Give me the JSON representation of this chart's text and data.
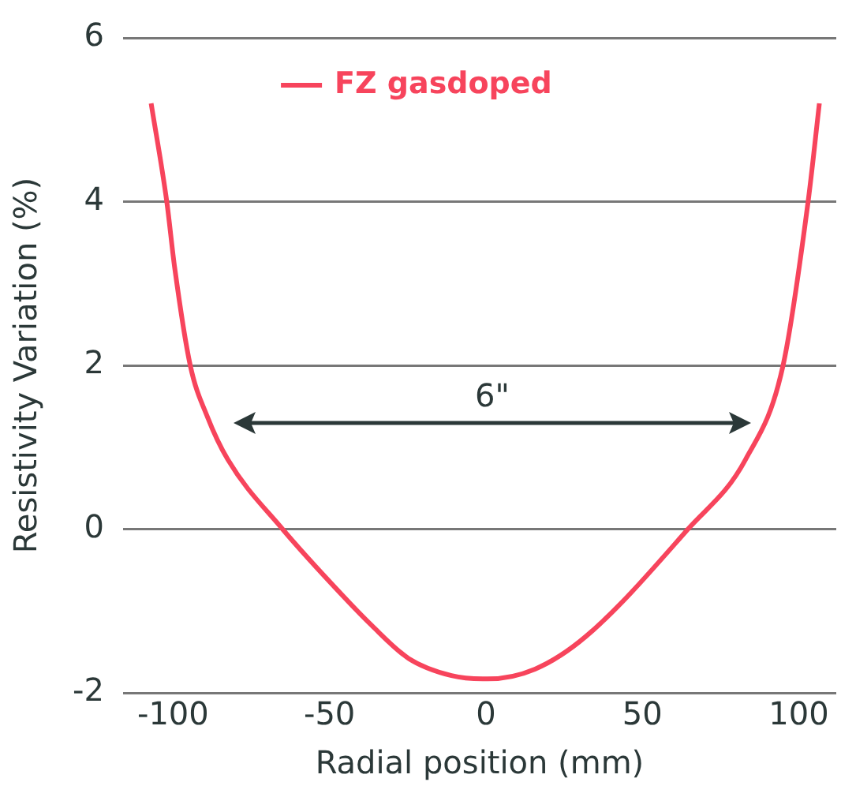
{
  "chart_data": {
    "type": "line",
    "xlabel": "Radial position (mm)",
    "ylabel": "Resistivity Variation (%)",
    "xlim": [
      -116,
      112
    ],
    "xticks": [
      -100,
      -50,
      0,
      50,
      100
    ],
    "ylim": [
      -2,
      6
    ],
    "yticks": [
      -2,
      0,
      2,
      4,
      6
    ],
    "grid": "y",
    "legend": "top",
    "marker": "none",
    "line_style": "solid",
    "annotations": [
      "6\""
    ],
    "series": [
      {
        "name": "FZ gasdoped",
        "color": "#f7445c",
        "x": [
          -107,
          -102,
          -99.5,
          -94.5,
          -89,
          -82.5,
          -65,
          -50,
          -36.4,
          -24.7,
          -11,
          -1,
          0.5,
          15.7,
          32,
          64.6,
          83,
          95,
          103,
          106.6
        ],
        "values": [
          5.2,
          4.0,
          3.2,
          2.0,
          1.37,
          0.85,
          0,
          -0.64,
          -1.18,
          -1.58,
          -1.79,
          -1.83,
          -1.83,
          -1.71,
          -1.31,
          0,
          0.85,
          2.0,
          4.0,
          5.2
        ]
      }
    ]
  }
}
